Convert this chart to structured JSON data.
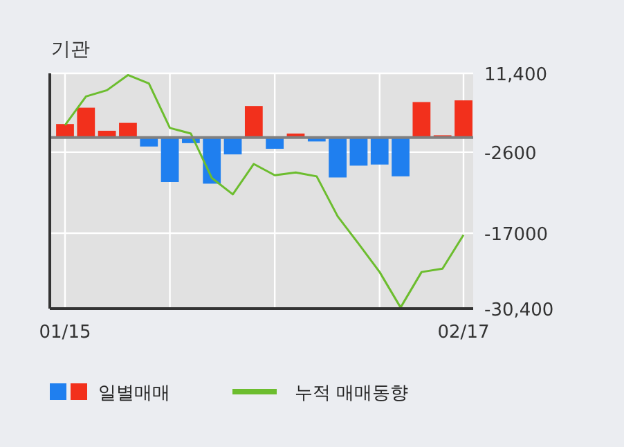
{
  "chart_data": {
    "type": "bar",
    "title": "기관",
    "categories": [
      "01/15",
      null,
      null,
      null,
      null,
      null,
      null,
      null,
      null,
      null,
      null,
      null,
      null,
      null,
      null,
      null,
      null,
      null,
      null,
      "02/17"
    ],
    "series": [
      {
        "name": "일별매매",
        "colors": [
          "#f2301c",
          "#f2301c",
          "#f2301c",
          "#f2301c",
          "#1f7fef",
          "#1f7fef",
          "#1f7fef",
          "#1f7fef",
          "#1f7fef",
          "#f2301c",
          "#1f7fef",
          "#f2301c",
          "#1f7fef",
          "#1f7fef",
          "#1f7fef",
          "#1f7fef",
          "#1f7fef",
          "#f2301c",
          "#f2301c",
          "#f2301c"
        ],
        "values": [
          2400,
          5300,
          1200,
          2600,
          -1600,
          -7900,
          -1000,
          -8200,
          -3000,
          5600,
          -2000,
          700,
          -700,
          -7100,
          -5000,
          -4800,
          -6900,
          6300,
          400,
          6600
        ]
      },
      {
        "name": "누적 매매동향",
        "type": "line",
        "color": "#6cbd2e",
        "values": [
          2200,
          7300,
          8400,
          11100,
          9600,
          1700,
          700,
          -7200,
          -10100,
          -4700,
          -6700,
          -6200,
          -6900,
          -14000,
          -18900,
          -23900,
          -30200,
          -23900,
          -23300,
          -17300
        ]
      }
    ],
    "ylim": [
      -30400,
      11400
    ],
    "yticks": [
      {
        "value": 11400,
        "label": "11,400"
      },
      -2600,
      -17000,
      {
        "value": -30400,
        "label": "-30,400"
      }
    ],
    "grid": true,
    "legend": "bottom"
  }
}
